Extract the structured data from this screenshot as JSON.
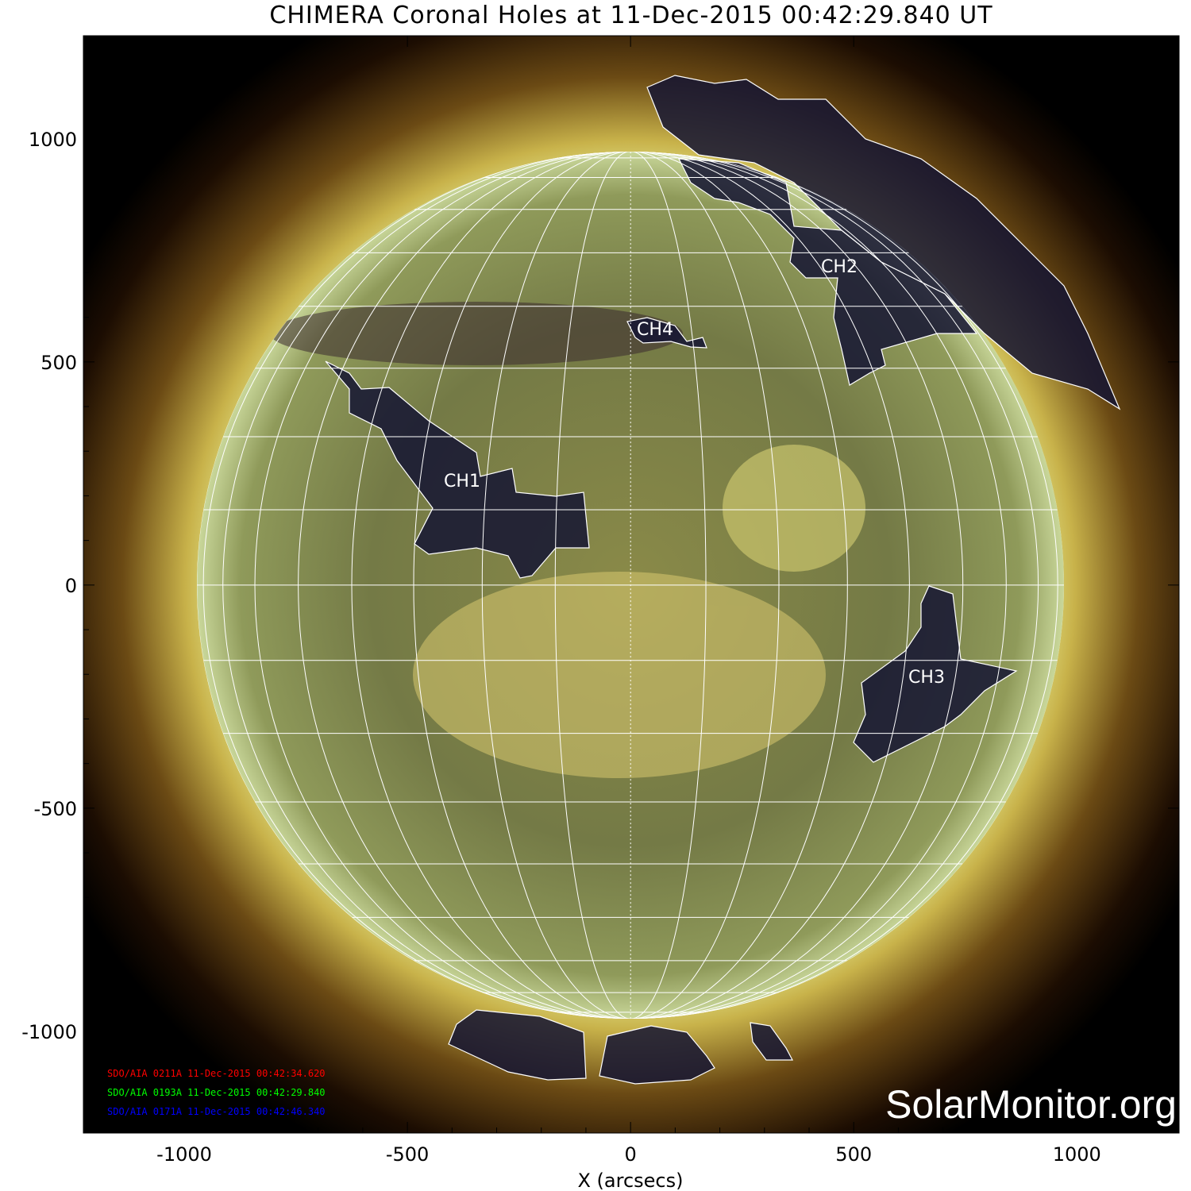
{
  "chart_data": {
    "type": "image",
    "title": "CHIMERA Coronal Holes at 11-Dec-2015 00:42:29.840 UT",
    "xlabel": "X (arcsecs)",
    "ylabel": "",
    "xlim": [
      -1226,
      1229
    ],
    "ylim": [
      -1228,
      1231
    ],
    "x_ticks": [
      "-1000",
      "-500",
      "0",
      "500",
      "1000"
    ],
    "y_ticks": [
      "1000",
      "500",
      "0",
      "-500",
      "-1000"
    ],
    "x_tick_values": [
      -1000,
      -500,
      0,
      500,
      1000
    ],
    "y_tick_values": [
      1000,
      500,
      0,
      -500,
      -1000
    ],
    "solar_radius_arcsec": 972,
    "grid_spacing_deg": 10,
    "coronal_holes": [
      {
        "label": "CH1"
      },
      {
        "label": "CH2"
      },
      {
        "label": "CH3"
      },
      {
        "label": "CH4"
      }
    ],
    "channels": [
      {
        "text": "SDO/AIA 0211A 11-Dec-2015 00:42:34.620",
        "color": "#ff0000"
      },
      {
        "text": "SDO/AIA 0193A 11-Dec-2015 00:42:29.840",
        "color": "#00ff00"
      },
      {
        "text": "SDO/AIA 0171A 11-Dec-2015 00:42:46.340",
        "color": "#0000ff"
      }
    ],
    "watermark": "SolarMonitor.org",
    "colors": {
      "background": "#000000",
      "contour": "#ffffff",
      "hole_fill": "#141433"
    }
  }
}
